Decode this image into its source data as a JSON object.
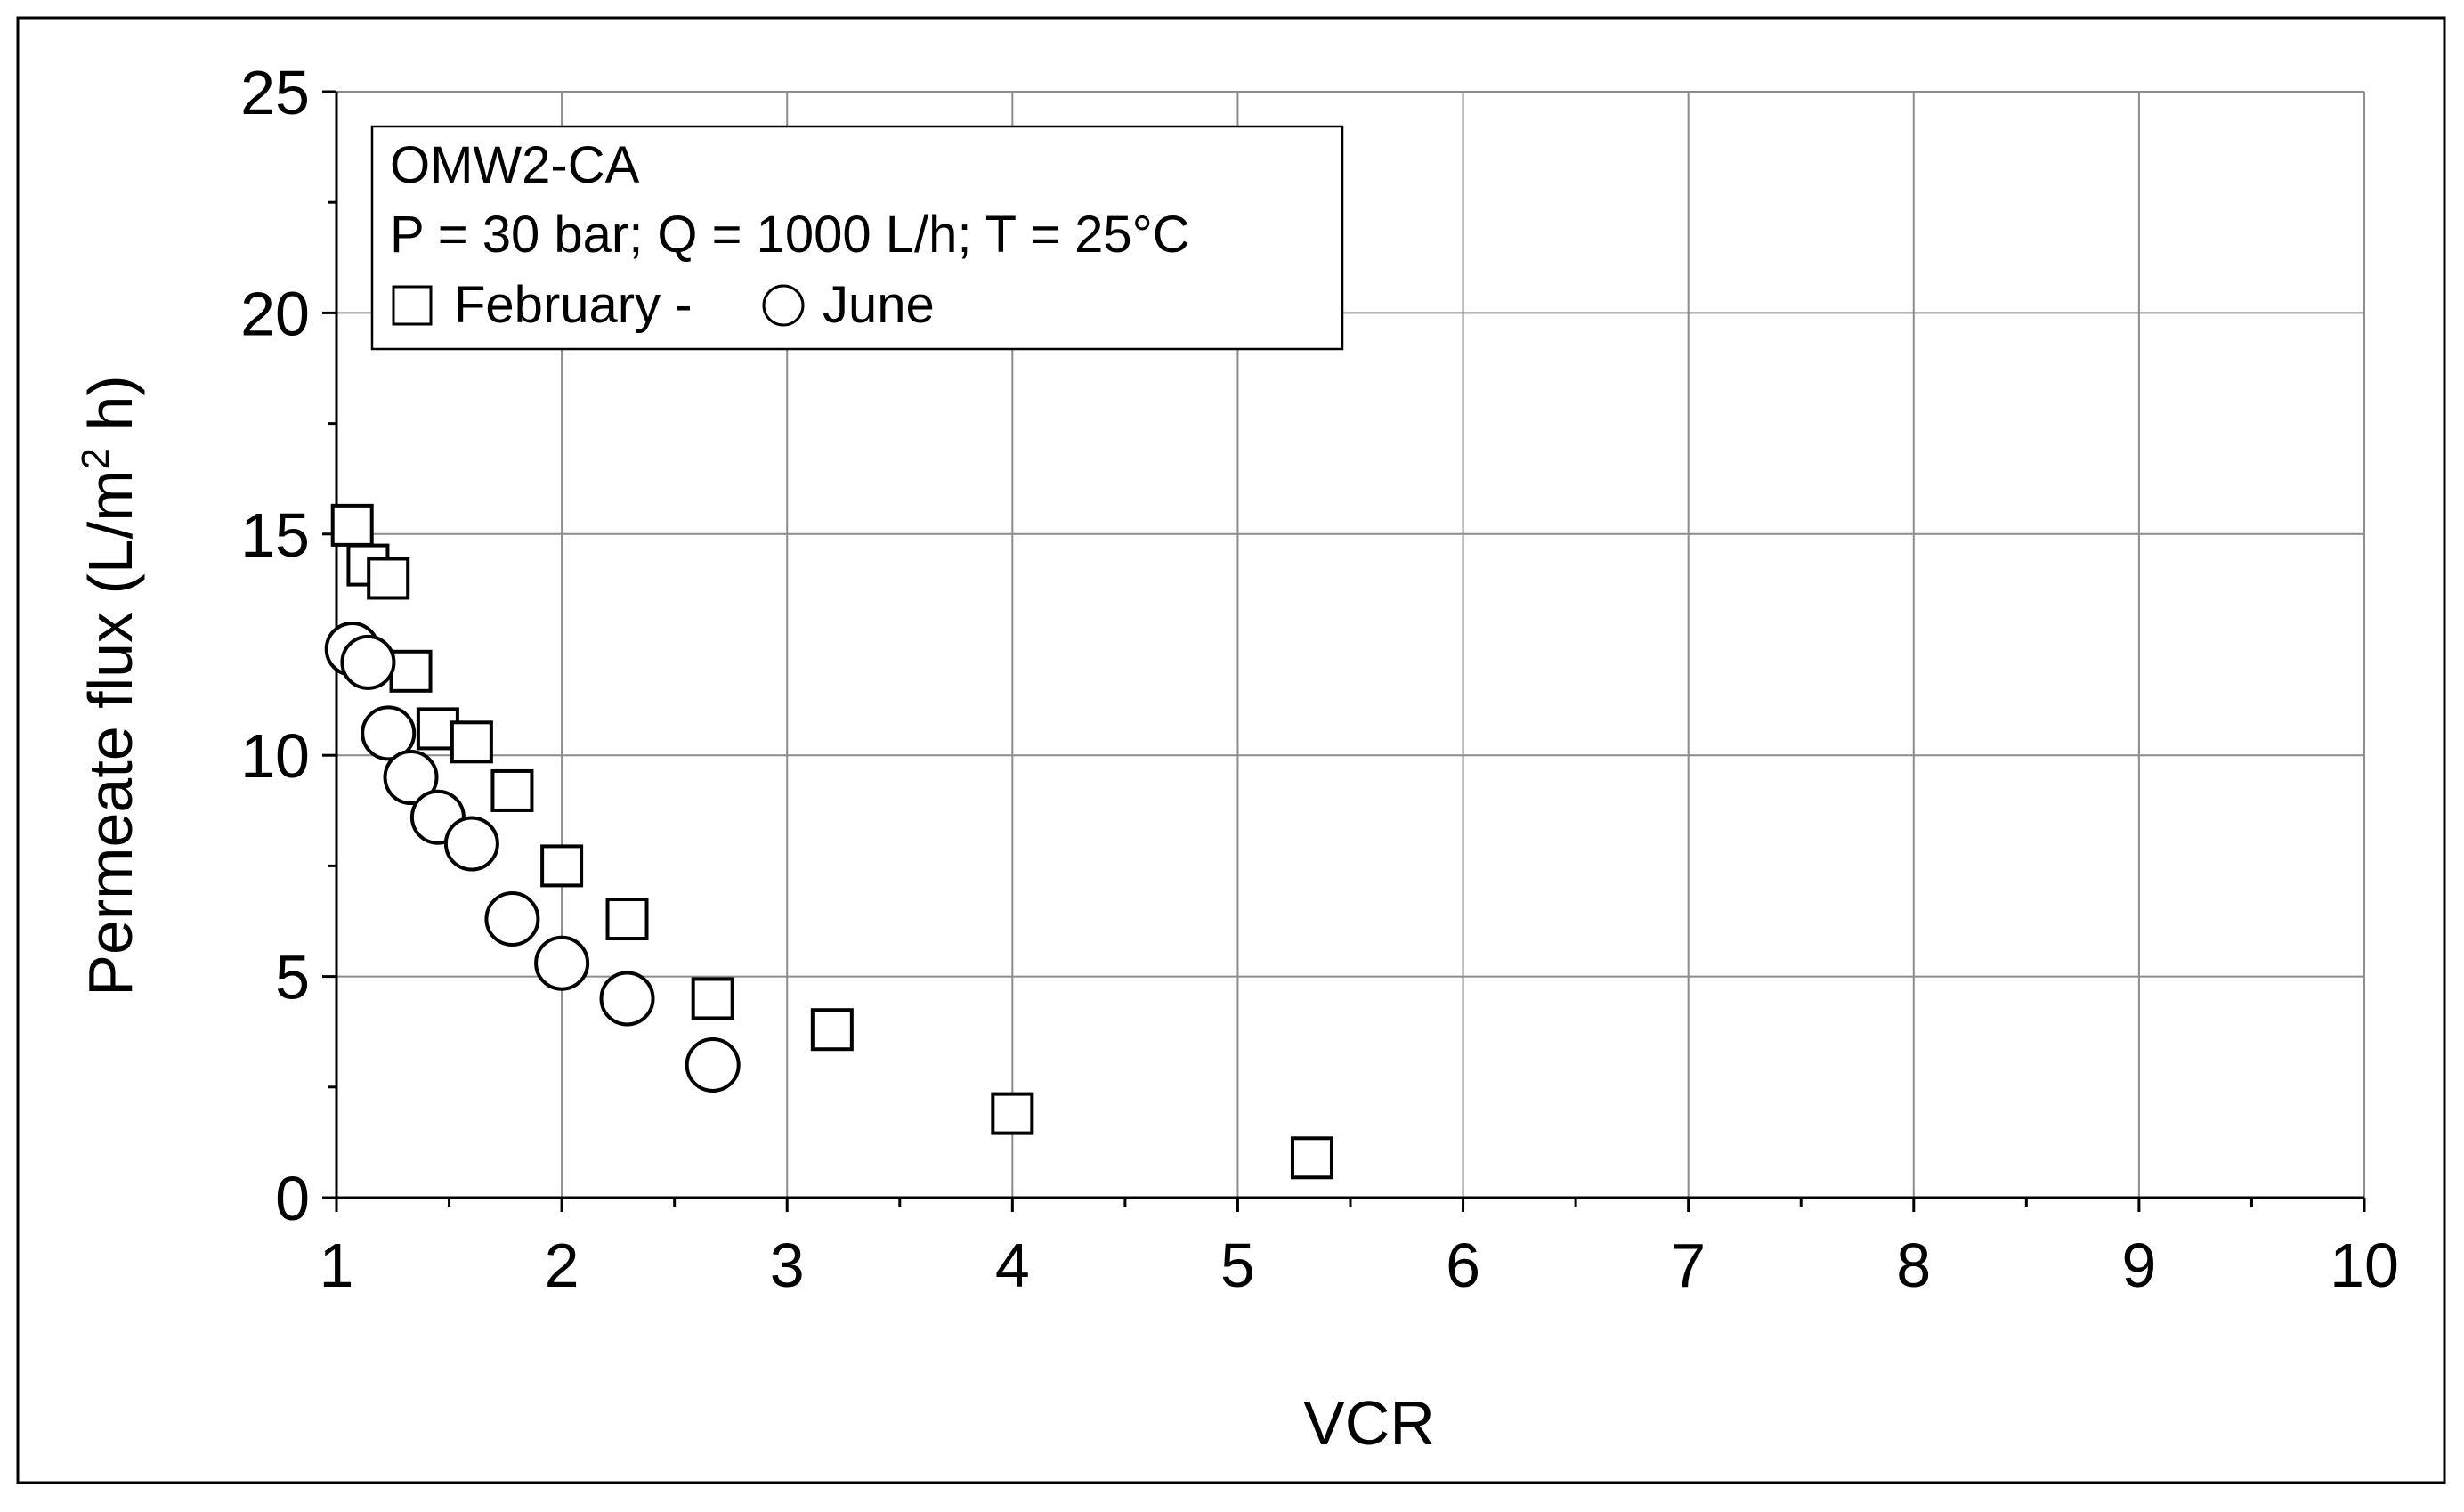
{
  "chart_data": {
    "type": "scatter",
    "title": "",
    "xlabel": "VCR",
    "ylabel": {
      "before": "Permeate flux (L/m",
      "sup": "2",
      "after": " h)"
    },
    "xlim": [
      1,
      10
    ],
    "ylim": [
      0,
      25
    ],
    "x_ticks": [
      "1",
      "2",
      "3",
      "4",
      "5",
      "6",
      "7",
      "8",
      "9",
      "10"
    ],
    "y_ticks": [
      "0",
      "5",
      "10",
      "15",
      "20",
      "25"
    ],
    "grid": true,
    "legend": {
      "placement": "top-left",
      "lines": [
        "OMW2-CA",
        "P = 30 bar; Q = 1000 L/h; T = 25°C"
      ],
      "february_label": "February -",
      "june_label": "June"
    },
    "series": [
      {
        "name": "February",
        "marker": "square",
        "points": [
          {
            "x": 1.07,
            "y": 15.2
          },
          {
            "x": 1.14,
            "y": 14.3
          },
          {
            "x": 1.23,
            "y": 14.0
          },
          {
            "x": 1.33,
            "y": 11.9
          },
          {
            "x": 1.45,
            "y": 10.6
          },
          {
            "x": 1.6,
            "y": 10.3
          },
          {
            "x": 1.78,
            "y": 9.2
          },
          {
            "x": 2.0,
            "y": 7.5
          },
          {
            "x": 2.29,
            "y": 6.3
          },
          {
            "x": 2.67,
            "y": 4.5
          },
          {
            "x": 3.2,
            "y": 3.8
          },
          {
            "x": 4.0,
            "y": 1.9
          },
          {
            "x": 5.33,
            "y": 0.9
          }
        ]
      },
      {
        "name": "June",
        "marker": "circle",
        "points": [
          {
            "x": 1.07,
            "y": 12.4
          },
          {
            "x": 1.14,
            "y": 12.1
          },
          {
            "x": 1.23,
            "y": 10.5
          },
          {
            "x": 1.33,
            "y": 9.5
          },
          {
            "x": 1.45,
            "y": 8.6
          },
          {
            "x": 1.6,
            "y": 8.0
          },
          {
            "x": 1.78,
            "y": 6.3
          },
          {
            "x": 2.0,
            "y": 5.3
          },
          {
            "x": 2.29,
            "y": 4.5
          },
          {
            "x": 2.67,
            "y": 3.0
          }
        ]
      }
    ]
  }
}
